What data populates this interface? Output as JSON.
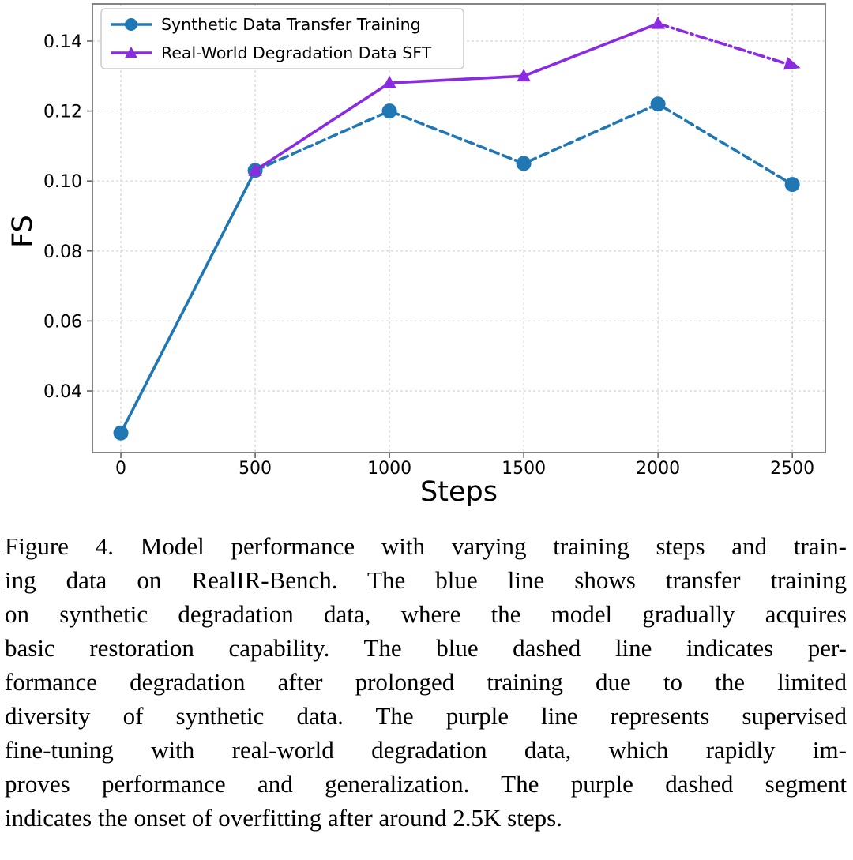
{
  "chart_data": {
    "type": "line",
    "title": "",
    "xlabel": "Steps",
    "ylabel": "FS",
    "x_ticks": [
      0,
      500,
      1000,
      1500,
      2000,
      2500
    ],
    "x_tick_labels": [
      "0",
      "500",
      "1000",
      "1500",
      "2000",
      "2500"
    ],
    "y_ticks": [
      0.04,
      0.06,
      0.08,
      0.1,
      0.12,
      0.14
    ],
    "y_tick_labels": [
      "0.04",
      "0.06",
      "0.08",
      "0.10",
      "0.12",
      "0.14"
    ],
    "xlim": [
      -106,
      2623
    ],
    "ylim": [
      0.0224,
      0.1506
    ],
    "grid": true,
    "legend_position": "upper-left",
    "series": [
      {
        "name": "Synthetic Data Transfer Training",
        "color": "#1f77b4",
        "marker": "circle",
        "x": [
          0,
          500,
          1000,
          1500,
          2000,
          2500
        ],
        "values": [
          0.028,
          0.103,
          0.12,
          0.105,
          0.122,
          0.099
        ],
        "segments": [
          {
            "from": 0,
            "to": 1,
            "style": "solid"
          },
          {
            "from": 1,
            "to": 5,
            "style": "dashed"
          }
        ],
        "end_arrow": false
      },
      {
        "name": "Real-World Degradation Data SFT",
        "color": "#8a2be2",
        "marker": "triangle",
        "x": [
          500,
          1000,
          1500,
          2000,
          2500
        ],
        "values": [
          0.103,
          0.128,
          0.13,
          0.145,
          0.133
        ],
        "segments": [
          {
            "from": 0,
            "to": 3,
            "style": "solid"
          },
          {
            "from": 3,
            "to": 4,
            "style": "dashdot"
          }
        ],
        "end_arrow": true
      }
    ]
  },
  "figure": {
    "caption_lines": [
      "Figure 4. Model performance with varying training steps and train-",
      "ing data on RealIR-Bench. The blue line shows transfer training",
      "on synthetic degradation data, where the model gradually acquires",
      "basic restoration capability. The blue dashed line indicates per-",
      "formance degradation after prolonged training due to the limited",
      "diversity of synthetic data. The purple line represents supervised",
      "fine-tuning with real-world degradation data, which rapidly im-",
      "proves performance and generalization. The purple dashed segment",
      "indicates the onset of overfitting after around 2.5K steps."
    ]
  }
}
